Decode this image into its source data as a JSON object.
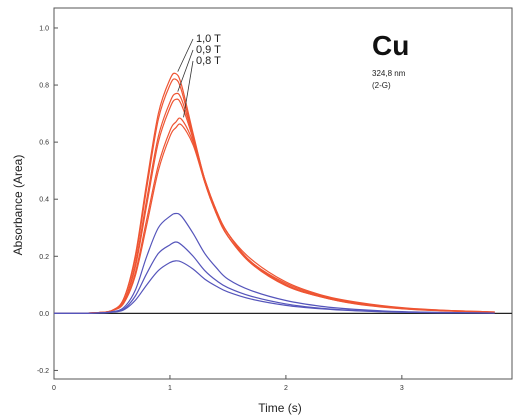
{
  "chart_data": {
    "type": "line",
    "title": "",
    "xlabel": "Time (s)",
    "ylabel": "Absorbance (Area)",
    "xlim": [
      0,
      3.95
    ],
    "ylim": [
      -0.23,
      1.07
    ],
    "x_ticks": [
      0,
      1,
      2,
      3
    ],
    "x_tick_labels": [
      "0",
      "1",
      "2",
      "3"
    ],
    "y_ticks": [
      -0.2,
      0.0,
      0.2,
      0.4,
      0.6,
      0.8,
      1.0
    ],
    "y_tick_labels": [
      "-0.2",
      "0.0",
      "0.2",
      "0.4",
      "0.6",
      "0.8",
      "1.0"
    ],
    "grid": false,
    "element": "Cu",
    "wavelength": "324,8 nm",
    "condition": "(2-G)",
    "colors": {
      "orange": "#ee5533",
      "blue": "#5555bb",
      "baseline": "#222222",
      "frame": "#555555"
    },
    "x": [
      0,
      0.2,
      0.4,
      0.5,
      0.6,
      0.7,
      0.8,
      0.9,
      1.0,
      1.05,
      1.1,
      1.2,
      1.3,
      1.4,
      1.5,
      1.7,
      2.0,
      2.3,
      2.6,
      3.0,
      3.4,
      3.8
    ],
    "series": [
      {
        "name": "1,0 T",
        "color": "orange",
        "label_peak": true,
        "values": [
          0,
          0,
          0.003,
          0.01,
          0.05,
          0.2,
          0.46,
          0.7,
          0.82,
          0.84,
          0.8,
          0.63,
          0.47,
          0.36,
          0.28,
          0.19,
          0.11,
          0.065,
          0.04,
          0.02,
          0.01,
          0.005
        ]
      },
      {
        "name": "",
        "color": "orange",
        "values": [
          0,
          0,
          0.003,
          0.01,
          0.05,
          0.19,
          0.44,
          0.68,
          0.8,
          0.82,
          0.78,
          0.62,
          0.46,
          0.35,
          0.27,
          0.18,
          0.105,
          0.062,
          0.038,
          0.019,
          0.01,
          0.005
        ]
      },
      {
        "name": "0,9 T",
        "color": "orange",
        "label_peak": true,
        "values": [
          0,
          0,
          0.003,
          0.01,
          0.04,
          0.17,
          0.4,
          0.62,
          0.74,
          0.77,
          0.75,
          0.62,
          0.47,
          0.36,
          0.28,
          0.18,
          0.1,
          0.06,
          0.036,
          0.018,
          0.009,
          0.004
        ]
      },
      {
        "name": "",
        "color": "orange",
        "values": [
          0,
          0,
          0.003,
          0.01,
          0.04,
          0.16,
          0.38,
          0.6,
          0.72,
          0.75,
          0.73,
          0.61,
          0.46,
          0.35,
          0.27,
          0.175,
          0.098,
          0.058,
          0.034,
          0.017,
          0.009,
          0.004
        ]
      },
      {
        "name": "0,8 T",
        "color": "orange",
        "label_peak": true,
        "values": [
          0,
          0,
          0.003,
          0.01,
          0.035,
          0.14,
          0.33,
          0.52,
          0.64,
          0.67,
          0.68,
          0.6,
          0.47,
          0.36,
          0.28,
          0.18,
          0.1,
          0.06,
          0.035,
          0.017,
          0.009,
          0.004
        ]
      },
      {
        "name": "",
        "color": "orange",
        "values": [
          0,
          0,
          0.003,
          0.01,
          0.035,
          0.13,
          0.31,
          0.5,
          0.62,
          0.65,
          0.66,
          0.59,
          0.46,
          0.35,
          0.27,
          0.175,
          0.097,
          0.058,
          0.033,
          0.016,
          0.008,
          0.004
        ]
      },
      {
        "name": "",
        "color": "blue",
        "values": [
          0,
          0,
          0.002,
          0.006,
          0.02,
          0.08,
          0.2,
          0.3,
          0.34,
          0.35,
          0.34,
          0.28,
          0.21,
          0.16,
          0.12,
          0.08,
          0.045,
          0.025,
          0.014,
          0.006,
          0.003,
          0.001
        ]
      },
      {
        "name": "",
        "color": "blue",
        "values": [
          0,
          0,
          0.002,
          0.005,
          0.015,
          0.06,
          0.14,
          0.21,
          0.24,
          0.25,
          0.24,
          0.2,
          0.15,
          0.115,
          0.09,
          0.06,
          0.033,
          0.018,
          0.01,
          0.005,
          0.002,
          0.001
        ]
      },
      {
        "name": "",
        "color": "blue",
        "values": [
          0,
          0,
          0.001,
          0.004,
          0.012,
          0.045,
          0.1,
          0.15,
          0.178,
          0.184,
          0.18,
          0.155,
          0.12,
          0.095,
          0.075,
          0.05,
          0.028,
          0.016,
          0.009,
          0.004,
          0.002,
          0.001
        ]
      }
    ]
  }
}
